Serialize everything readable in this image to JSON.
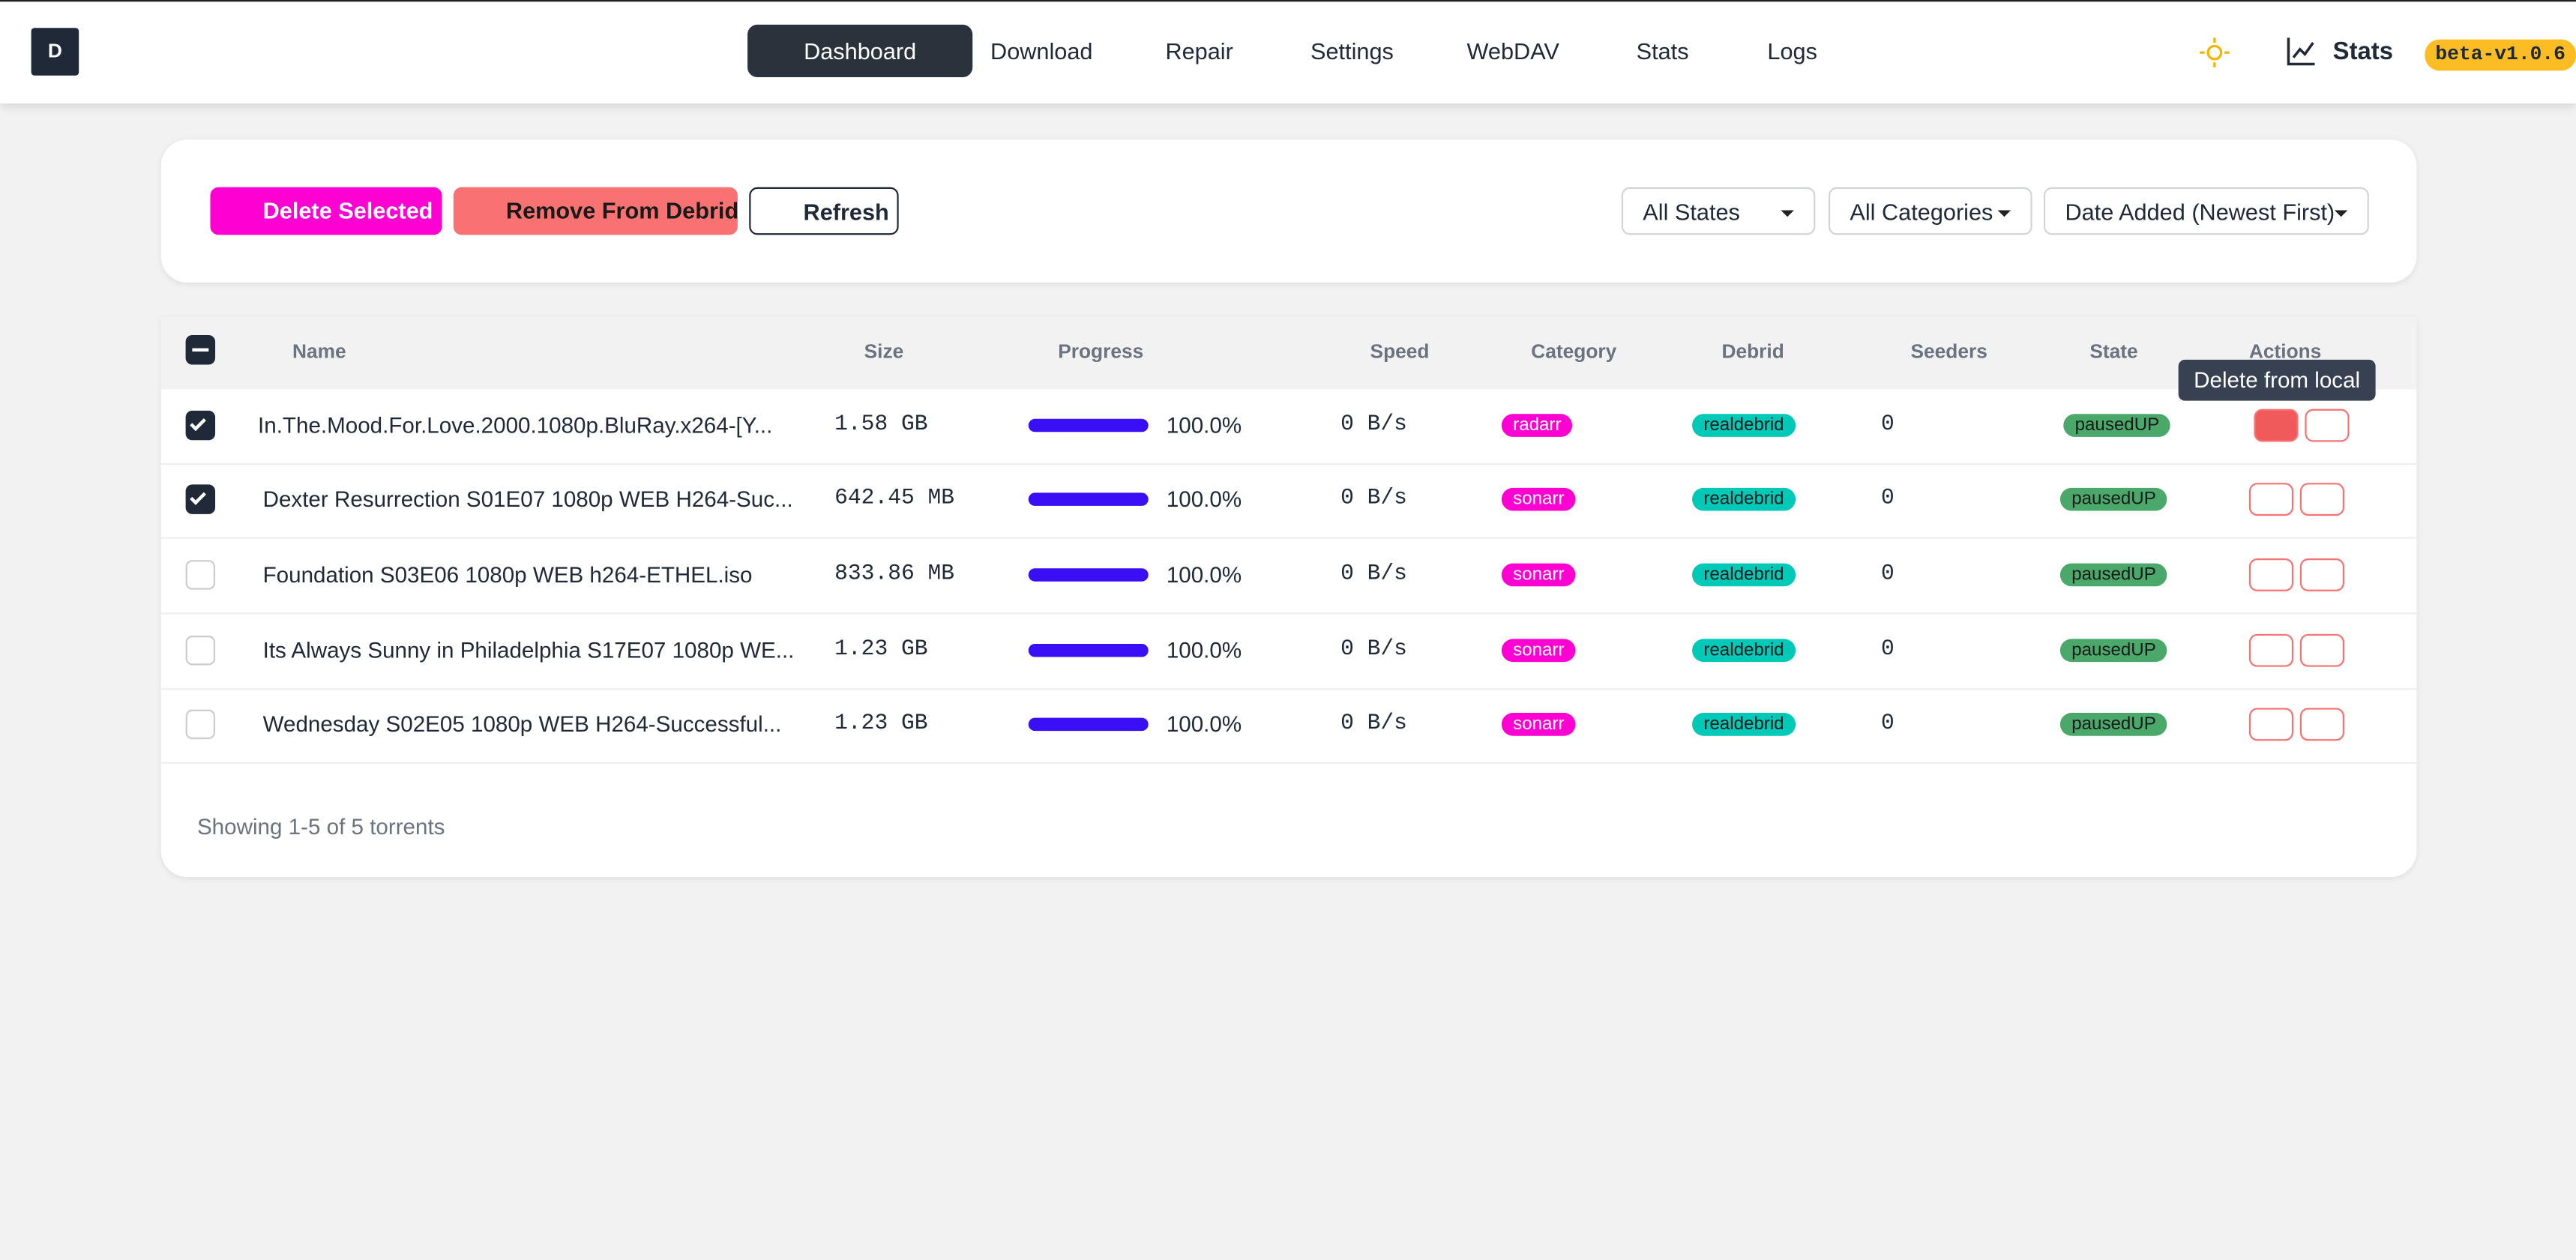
{
  "header": {
    "nav": [
      "Dashboard",
      "Download",
      "Repair",
      "Settings",
      "WebDAV",
      "Stats",
      "Logs"
    ],
    "stats_label": "Stats",
    "version": "beta-v1.0.6"
  },
  "toolbar": {
    "buttons": [
      "Delete Selected",
      "Remove From Debrid",
      "Refresh"
    ],
    "filters": [
      "All States",
      "All Categories",
      "Date Added (Newest First)"
    ]
  },
  "table": {
    "columns": [
      "Name",
      "Size",
      "Progress",
      "Speed",
      "Category",
      "Debrid",
      "Seeders",
      "State",
      "Actions"
    ],
    "rows": [
      {
        "checked": true,
        "name": "In.The.Mood.For.Love.2000.1080p.BluRay.x264-[Y...",
        "size": "1.58 GB",
        "progress": "100.0%",
        "speed": "0 B/s",
        "category": "radarr",
        "debrid": "realdebrid",
        "seeders": "0",
        "state": "pausedUP"
      },
      {
        "checked": true,
        "name": "Dexter Resurrection S01E07 1080p WEB H264-Suc...",
        "size": "642.45 MB",
        "progress": "100.0%",
        "speed": "0 B/s",
        "category": "sonarr",
        "debrid": "realdebrid",
        "seeders": "0",
        "state": "pausedUP"
      },
      {
        "checked": false,
        "name": "Foundation S03E06 1080p WEB h264-ETHEL.iso",
        "size": "833.86 MB",
        "progress": "100.0%",
        "speed": "0 B/s",
        "category": "sonarr",
        "debrid": "realdebrid",
        "seeders": "0",
        "state": "pausedUP"
      },
      {
        "checked": false,
        "name": "Its Always Sunny in Philadelphia S17E07 1080p WE...",
        "size": "1.23 GB",
        "progress": "100.0%",
        "speed": "0 B/s",
        "category": "sonarr",
        "debrid": "realdebrid",
        "seeders": "0",
        "state": "pausedUP"
      },
      {
        "checked": false,
        "name": "Wednesday S02E05 1080p WEB H264-Successful...",
        "size": "1.23 GB",
        "progress": "100.0%",
        "speed": "0 B/s",
        "category": "sonarr",
        "debrid": "realdebrid",
        "seeders": "0",
        "state": "pausedUP"
      }
    ],
    "footer": "Showing 1-5 of 5 torrents"
  },
  "tooltip": "Delete from local"
}
